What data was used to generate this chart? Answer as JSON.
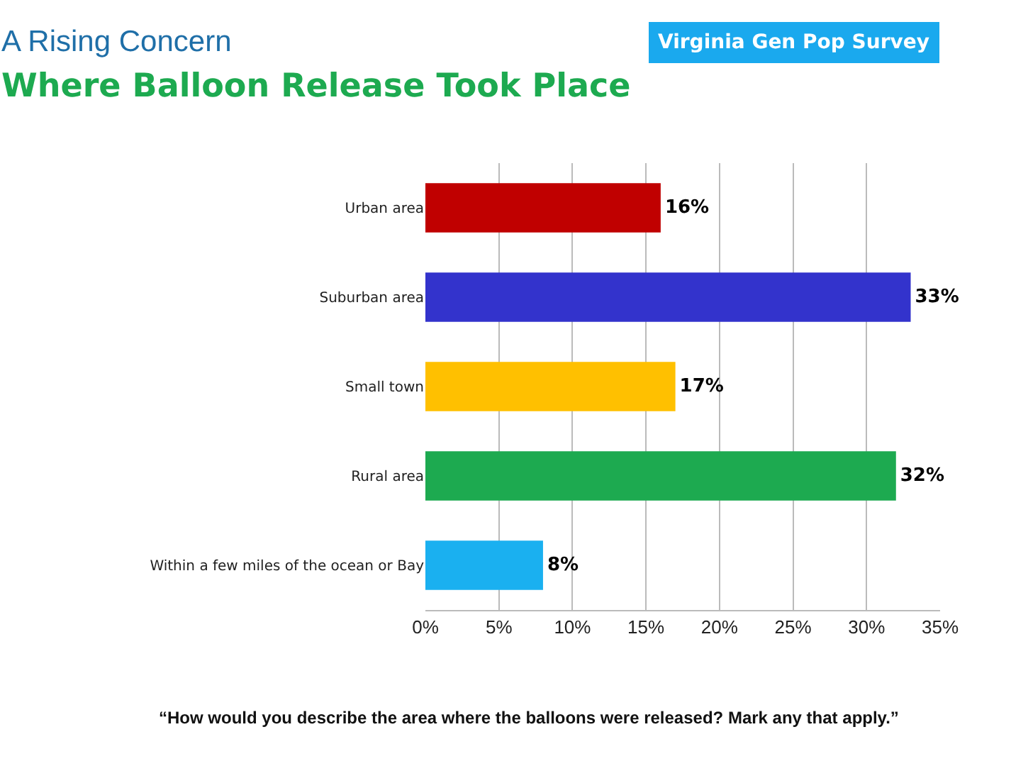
{
  "chart_data": {
    "type": "bar",
    "orientation": "horizontal",
    "title": "A Rising Concern",
    "subtitle": "Where Balloon Release Took Place",
    "categories": [
      "Urban area",
      "Suburban area",
      "Small town",
      "Rural area",
      "Within a few miles of the ocean or Bay"
    ],
    "values": [
      16,
      33,
      17,
      32,
      8
    ],
    "colors": [
      "#c00000",
      "#3333cc",
      "#ffc000",
      "#1daa50",
      "#1ab0f0"
    ],
    "value_labels": [
      "16%",
      "33%",
      "17%",
      "32%",
      "8%"
    ],
    "xlim": [
      0,
      35
    ],
    "xticks": [
      {
        "value": 0,
        "label": "0%"
      },
      {
        "value": 5,
        "label": "5%"
      },
      {
        "value": 10,
        "label": "10%"
      },
      {
        "value": 15,
        "label": "15%"
      },
      {
        "value": 20,
        "label": "20%"
      },
      {
        "value": 25,
        "label": "25%"
      },
      {
        "value": 30,
        "label": "30%"
      },
      {
        "value": 35,
        "label": "35%"
      }
    ],
    "grid": "x",
    "annotations": [
      "Virginia Gen Pop Survey",
      "“How would you describe the area where the balloons were released? Mark any that apply.”"
    ]
  }
}
